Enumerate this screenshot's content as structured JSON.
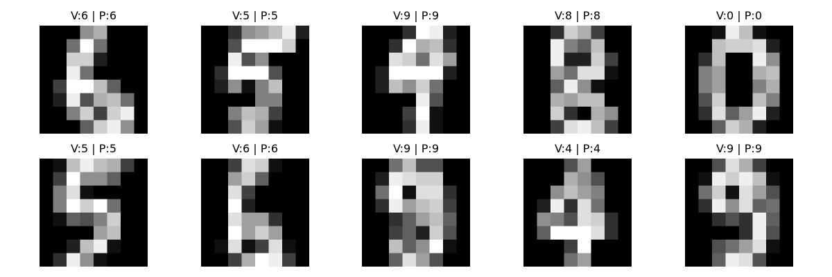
{
  "chart_data": {
    "type": "heatmap",
    "grid": {
      "rows": 2,
      "columns": 5
    },
    "image_size": [
      8,
      8
    ],
    "colormap": "gray",
    "value_range": [
      0,
      16
    ],
    "axes_visible": false,
    "panels": [
      {
        "title": "V:6 | P:6",
        "true_label": 6,
        "predicted_label": 6,
        "pixels": [
          [
            0,
            0,
            0,
            9,
            11,
            0,
            0,
            0
          ],
          [
            0,
            0,
            7,
            16,
            7,
            0,
            0,
            0
          ],
          [
            0,
            0,
            13,
            13,
            2,
            0,
            0,
            0
          ],
          [
            0,
            0,
            15,
            7,
            0,
            0,
            0,
            0
          ],
          [
            0,
            4,
            16,
            16,
            12,
            6,
            0,
            0
          ],
          [
            0,
            2,
            15,
            5,
            11,
            12,
            7,
            0
          ],
          [
            0,
            0,
            8,
            13,
            4,
            13,
            15,
            0
          ],
          [
            0,
            0,
            0,
            6,
            13,
            15,
            9,
            0
          ]
        ]
      },
      {
        "title": "V:5 | P:5",
        "true_label": 5,
        "predicted_label": 5,
        "pixels": [
          [
            0,
            0,
            3,
            9,
            10,
            12,
            15,
            2
          ],
          [
            0,
            0,
            5,
            16,
            16,
            16,
            13,
            0
          ],
          [
            0,
            0,
            15,
            5,
            9,
            0,
            0,
            0
          ],
          [
            0,
            3,
            16,
            16,
            16,
            5,
            0,
            0
          ],
          [
            0,
            2,
            9,
            1,
            8,
            12,
            0,
            0
          ],
          [
            0,
            0,
            0,
            0,
            8,
            8,
            0,
            0
          ],
          [
            0,
            0,
            8,
            12,
            11,
            4,
            0,
            0
          ],
          [
            0,
            0,
            5,
            13,
            10,
            1,
            0,
            0
          ]
        ]
      },
      {
        "title": "V:9 | P:9",
        "true_label": 9,
        "predicted_label": 9,
        "pixels": [
          [
            0,
            0,
            0,
            3,
            16,
            15,
            2,
            0
          ],
          [
            0,
            0,
            3,
            16,
            11,
            12,
            3,
            0
          ],
          [
            0,
            0,
            14,
            13,
            7,
            14,
            10,
            0
          ],
          [
            0,
            2,
            16,
            16,
            16,
            16,
            2,
            0
          ],
          [
            0,
            2,
            12,
            9,
            13,
            7,
            0,
            0
          ],
          [
            0,
            0,
            0,
            0,
            15,
            5,
            0,
            0
          ],
          [
            0,
            0,
            0,
            4,
            16,
            1,
            0,
            0
          ],
          [
            0,
            0,
            0,
            3,
            15,
            1,
            0,
            0
          ]
        ]
      },
      {
        "title": "V:8 | P:8",
        "true_label": 8,
        "predicted_label": 8,
        "pixels": [
          [
            0,
            0,
            3,
            13,
            11,
            4,
            0,
            0
          ],
          [
            0,
            0,
            15,
            8,
            6,
            12,
            0,
            0
          ],
          [
            0,
            0,
            15,
            2,
            2,
            13,
            4,
            0
          ],
          [
            0,
            0,
            10,
            7,
            14,
            14,
            1,
            0
          ],
          [
            0,
            0,
            6,
            15,
            9,
            1,
            0,
            0
          ],
          [
            0,
            0,
            11,
            10,
            12,
            12,
            0,
            0
          ],
          [
            0,
            0,
            13,
            3,
            0,
            11,
            9,
            0
          ],
          [
            0,
            0,
            4,
            14,
            15,
            12,
            4,
            0
          ]
        ]
      },
      {
        "title": "V:0 | P:0",
        "true_label": 0,
        "predicted_label": 0,
        "pixels": [
          [
            0,
            0,
            1,
            15,
            12,
            1,
            0,
            0
          ],
          [
            0,
            0,
            12,
            13,
            13,
            14,
            2,
            0
          ],
          [
            0,
            3,
            12,
            0,
            0,
            15,
            9,
            0
          ],
          [
            0,
            8,
            10,
            0,
            0,
            11,
            12,
            0
          ],
          [
            0,
            8,
            10,
            0,
            0,
            8,
            11,
            0
          ],
          [
            0,
            5,
            13,
            0,
            0,
            12,
            8,
            0
          ],
          [
            0,
            3,
            14,
            6,
            10,
            15,
            2,
            0
          ],
          [
            0,
            0,
            6,
            13,
            11,
            2,
            0,
            0
          ]
        ]
      },
      {
        "title": "V:5 | P:5",
        "true_label": 5,
        "predicted_label": 5,
        "pixels": [
          [
            0,
            1,
            12,
            15,
            12,
            11,
            4,
            0
          ],
          [
            0,
            4,
            16,
            9,
            9,
            6,
            0,
            0
          ],
          [
            0,
            8,
            14,
            1,
            0,
            0,
            0,
            0
          ],
          [
            0,
            8,
            16,
            13,
            16,
            7,
            0,
            0
          ],
          [
            0,
            1,
            6,
            5,
            8,
            13,
            0,
            0
          ],
          [
            0,
            0,
            0,
            0,
            10,
            12,
            0,
            0
          ],
          [
            0,
            0,
            2,
            12,
            15,
            1,
            0,
            0
          ],
          [
            0,
            3,
            15,
            9,
            1,
            0,
            0,
            0
          ]
        ]
      },
      {
        "title": "V:6 | P:6",
        "true_label": 6,
        "predicted_label": 6,
        "pixels": [
          [
            0,
            0,
            4,
            14,
            13,
            1,
            0,
            0
          ],
          [
            0,
            0,
            10,
            13,
            6,
            0,
            0,
            0
          ],
          [
            0,
            0,
            14,
            4,
            0,
            0,
            0,
            0
          ],
          [
            0,
            0,
            16,
            2,
            0,
            0,
            0,
            0
          ],
          [
            0,
            0,
            14,
            10,
            10,
            3,
            0,
            0
          ],
          [
            0,
            0,
            16,
            10,
            13,
            10,
            0,
            0
          ],
          [
            0,
            1,
            14,
            1,
            4,
            14,
            1,
            0
          ],
          [
            0,
            0,
            4,
            11,
            16,
            15,
            4,
            0
          ]
        ]
      },
      {
        "title": "V:9 | P:9",
        "true_label": 9,
        "predicted_label": 9,
        "pixels": [
          [
            0,
            0,
            7,
            12,
            5,
            5,
            0,
            0
          ],
          [
            0,
            2,
            15,
            14,
            13,
            13,
            0,
            0
          ],
          [
            0,
            7,
            16,
            1,
            14,
            14,
            3,
            0
          ],
          [
            0,
            3,
            15,
            10,
            12,
            13,
            4,
            0
          ],
          [
            0,
            0,
            3,
            6,
            10,
            12,
            6,
            0
          ],
          [
            0,
            0,
            4,
            6,
            2,
            13,
            5,
            0
          ],
          [
            0,
            0,
            12,
            6,
            9,
            16,
            1,
            0
          ],
          [
            0,
            0,
            6,
            14,
            10,
            5,
            0,
            0
          ]
        ]
      },
      {
        "title": "V:4 | P:4",
        "true_label": 4,
        "predicted_label": 4,
        "pixels": [
          [
            0,
            0,
            0,
            5,
            10,
            0,
            0,
            0
          ],
          [
            0,
            0,
            0,
            11,
            9,
            5,
            0,
            0
          ],
          [
            0,
            0,
            9,
            12,
            10,
            8,
            0,
            0
          ],
          [
            0,
            2,
            15,
            3,
            14,
            7,
            0,
            0
          ],
          [
            0,
            9,
            8,
            5,
            14,
            13,
            3,
            0
          ],
          [
            0,
            6,
            16,
            16,
            16,
            14,
            3,
            0
          ],
          [
            0,
            0,
            0,
            4,
            16,
            0,
            0,
            0
          ],
          [
            0,
            0,
            0,
            7,
            10,
            0,
            0,
            0
          ]
        ]
      },
      {
        "title": "V:9 | P:9",
        "true_label": 9,
        "predicted_label": 9,
        "pixels": [
          [
            0,
            0,
            5,
            14,
            11,
            4,
            0,
            0
          ],
          [
            0,
            1,
            15,
            13,
            15,
            12,
            1,
            0
          ],
          [
            0,
            7,
            13,
            1,
            14,
            10,
            5,
            0
          ],
          [
            0,
            3,
            15,
            9,
            14,
            6,
            7,
            0
          ],
          [
            0,
            0,
            3,
            5,
            3,
            15,
            6,
            0
          ],
          [
            0,
            0,
            0,
            0,
            3,
            15,
            5,
            0
          ],
          [
            0,
            0,
            5,
            7,
            10,
            14,
            1,
            0
          ],
          [
            0,
            0,
            6,
            15,
            14,
            5,
            0,
            0
          ]
        ]
      }
    ]
  }
}
